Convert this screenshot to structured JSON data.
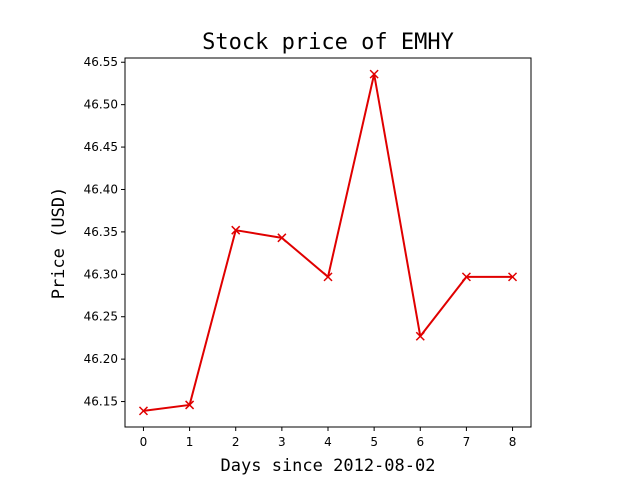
{
  "chart_data": {
    "type": "line",
    "title": "Stock price of EMHY",
    "xlabel": "Days since 2012-08-02",
    "ylabel": "Price (USD)",
    "x": [
      0,
      1,
      2,
      3,
      4,
      5,
      6,
      7,
      8
    ],
    "series": [
      {
        "values": [
          46.139,
          46.146,
          46.352,
          46.343,
          46.297,
          46.536,
          46.227,
          46.297,
          46.297
        ],
        "color": "#e00000",
        "marker": "x"
      }
    ],
    "xlim": [
      -0.4,
      8.4
    ],
    "ylim": [
      46.12,
      46.555
    ],
    "xticks": [
      0,
      1,
      2,
      3,
      4,
      5,
      6,
      7,
      8
    ],
    "yticks": [
      "46.15",
      "46.20",
      "46.25",
      "46.30",
      "46.35",
      "46.40",
      "46.45",
      "46.50",
      "46.55"
    ],
    "grid": false
  }
}
